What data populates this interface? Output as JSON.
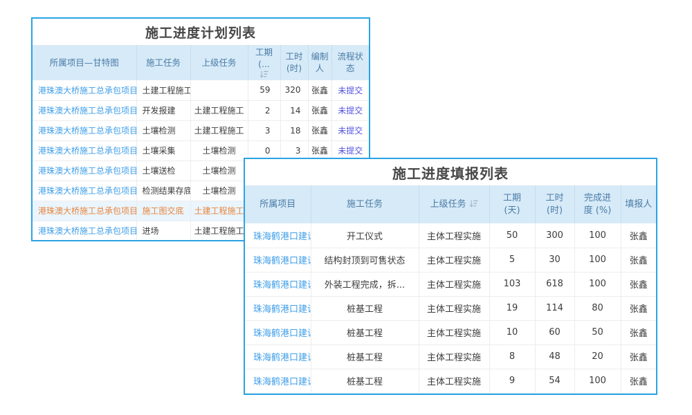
{
  "colors": {
    "card_border": "#29a3e3",
    "header_bg": "#d7eaf8",
    "header_text": "#4a7ca6",
    "link_blue": "#3f9ee8",
    "status_violet": "#5253e0",
    "highlight_orange": "#e8853d",
    "highlight_row_bg": "#eaf5fd",
    "title_text": "#474747"
  },
  "plan_table": {
    "title": "施工进度计划列表",
    "headers": [
      {
        "l1": "所属项目—甘特图"
      },
      {
        "l1": "施工任务"
      },
      {
        "l1": "上级任务"
      },
      {
        "l1": "工期",
        "l2": "(...",
        "sort": true
      },
      {
        "l1": "工时",
        "l2": "(时)"
      },
      {
        "l1": "编制",
        "l2": "人"
      },
      {
        "l1": "流程状",
        "l2": "态"
      }
    ],
    "highlighted_row": 6,
    "rows": [
      [
        "港珠澳大桥施工总承包项目",
        "土建工程施工",
        "",
        "59",
        "320",
        "张鑫",
        "未提交"
      ],
      [
        "港珠澳大桥施工总承包项目",
        "开发报建",
        "土建工程施工",
        "2",
        "14",
        "张鑫",
        "未提交"
      ],
      [
        "港珠澳大桥施工总承包项目",
        "土壤检测",
        "土建工程施工",
        "3",
        "18",
        "张鑫",
        "未提交"
      ],
      [
        "港珠澳大桥施工总承包项目",
        "土壤采集",
        "土壤检测",
        "0",
        "3",
        "张鑫",
        "未提交"
      ],
      [
        "港珠澳大桥施工总承包项目",
        "土壤送检",
        "土壤检测",
        "",
        "",
        "",
        ""
      ],
      [
        "港珠澳大桥施工总承包项目",
        "检测结果存底",
        "土壤检测",
        "",
        "",
        "",
        ""
      ],
      [
        "港珠澳大桥施工总承包项目",
        "施工图交底",
        "土建工程施工",
        "",
        "",
        "",
        ""
      ],
      [
        "港珠澳大桥施工总承包项目",
        "进场",
        "土建工程施工",
        "",
        "",
        "",
        ""
      ]
    ]
  },
  "report_table": {
    "title": "施工进度填报列表",
    "headers": [
      {
        "l1": "所属项目"
      },
      {
        "l1": "施工任务"
      },
      {
        "l1": "上级任务",
        "sort": true
      },
      {
        "l1": "工期",
        "l2": "(天)"
      },
      {
        "l1": "工时",
        "l2": "(时)"
      },
      {
        "l1": "完成进",
        "l2": "度 (%)"
      },
      {
        "l1": "填报人"
      }
    ],
    "rows": [
      [
        "珠海鹤港口建设",
        "开工仪式",
        "主体工程实施",
        "50",
        "300",
        "100",
        "张鑫"
      ],
      [
        "珠海鹤港口建设",
        "结构封顶到可售状态",
        "主体工程实施",
        "5",
        "30",
        "100",
        "张鑫"
      ],
      [
        "珠海鹤港口建设",
        "外装工程完成，拆...",
        "主体工程实施",
        "103",
        "618",
        "100",
        "张鑫"
      ],
      [
        "珠海鹤港口建设",
        "桩基工程",
        "主体工程实施",
        "19",
        "114",
        "80",
        "张鑫"
      ],
      [
        "珠海鹤港口建设",
        "桩基工程",
        "主体工程实施",
        "10",
        "60",
        "50",
        "张鑫"
      ],
      [
        "珠海鹤港口建设",
        "桩基工程",
        "主体工程实施",
        "8",
        "48",
        "20",
        "张鑫"
      ],
      [
        "珠海鹤港口建设",
        "桩基工程",
        "主体工程实施",
        "9",
        "54",
        "100",
        "张鑫"
      ]
    ]
  }
}
